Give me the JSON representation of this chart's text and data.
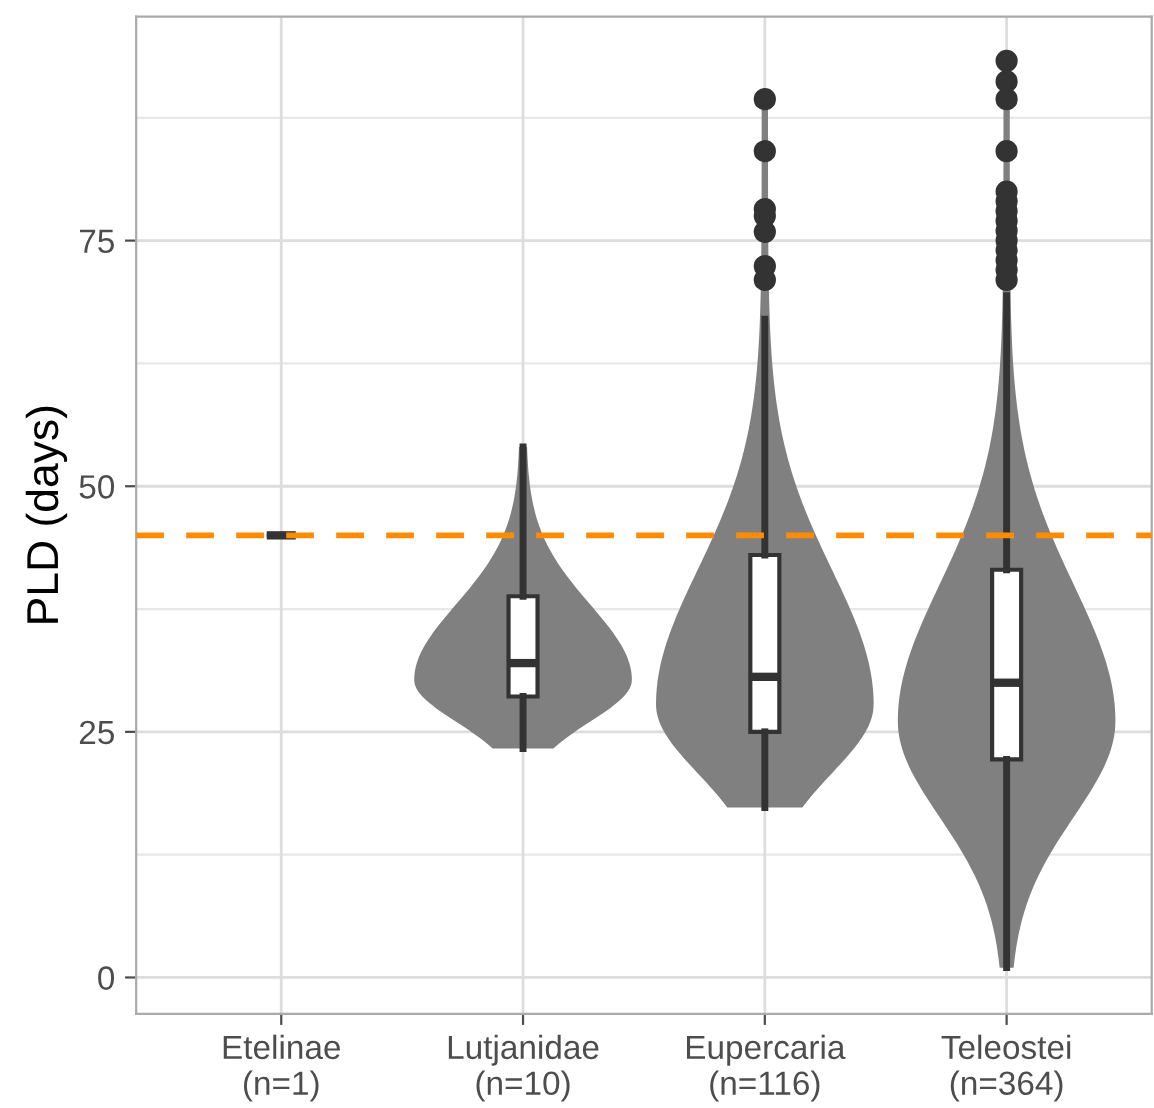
{
  "chart_data": {
    "type": "box",
    "ylabel": "PLD (days)",
    "categories": [
      "Etelinae\n(n=1)",
      "Lutjanidae\n(n=10)",
      "Eupercaria\n(n=116)",
      "Teleostei\n(n=364)"
    ],
    "boxes": [
      {
        "low": 45,
        "q1": 45,
        "median": 45,
        "q3": 45,
        "high": 45
      },
      {
        "low": 23.3,
        "q1": 28.6,
        "median": 32,
        "q3": 38.8,
        "high": 54
      },
      {
        "low": 17.3,
        "q1": 25,
        "median": 30.6,
        "q3": 43,
        "high": 67,
        "outliers": [
          89.4,
          84.1,
          78.2,
          77.5,
          75.9,
          72.4,
          71
        ]
      },
      {
        "low": 1,
        "q1": 22.2,
        "median": 30,
        "q3": 41.5,
        "high": 69.4,
        "outliers": [
          93.3,
          91.2,
          89.4,
          84.1,
          80,
          79,
          78,
          77,
          76,
          75,
          74,
          73,
          72,
          71
        ]
      }
    ],
    "color": "#333333",
    "ylim": [
      -3.7,
      97.8
    ],
    "yticks": [
      0,
      25,
      50,
      75
    ],
    "ref_lines": [
      {
        "axis": "y",
        "value": 45,
        "color": "#ff8c00",
        "line_style": "dashed"
      }
    ],
    "grid": true
  }
}
